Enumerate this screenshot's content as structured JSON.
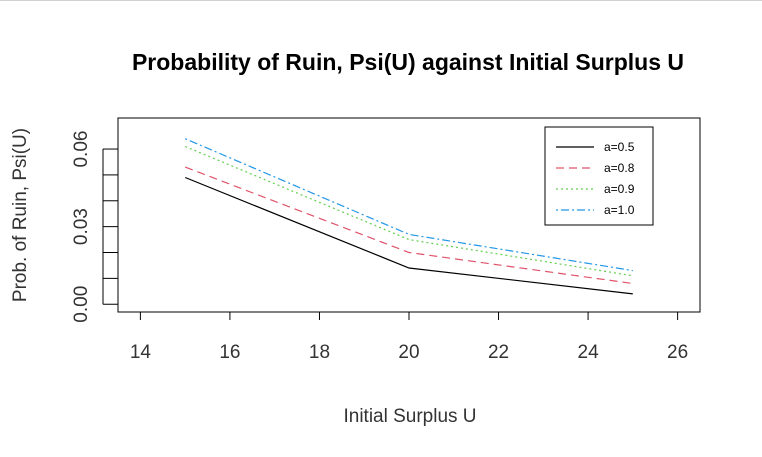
{
  "chart_data": {
    "type": "line",
    "title": "Probability of Ruin, Psi(U) against Initial Surplus U",
    "xlabel": "Initial Surplus U",
    "ylabel": "Prob. of Ruin, Psi(U)",
    "xlim": [
      13.5,
      26.5
    ],
    "ylim": [
      -0.003,
      0.072
    ],
    "xticks": [
      14,
      16,
      18,
      20,
      22,
      24,
      26
    ],
    "xtick_labels": [
      "14",
      "16",
      "18",
      "20",
      "22",
      "24",
      "26"
    ],
    "yticks": [
      0.0,
      0.01,
      0.02,
      0.03,
      0.04,
      0.05,
      0.06
    ],
    "ytick_labels": [
      "0.00",
      "",
      "",
      "0.03",
      "",
      "",
      "0.06"
    ],
    "grid": false,
    "legend_position": "top-right",
    "x": [
      15,
      20,
      25
    ],
    "series": [
      {
        "name": "a=0.5",
        "values": [
          0.049,
          0.014,
          0.004
        ],
        "color": "#000000",
        "dash": "solid"
      },
      {
        "name": "a=0.8",
        "values": [
          0.053,
          0.02,
          0.008
        ],
        "color": "#DF536B",
        "dash": "dashed"
      },
      {
        "name": "a=0.9",
        "values": [
          0.061,
          0.025,
          0.011
        ],
        "color": "#61D04F",
        "dash": "dotted"
      },
      {
        "name": "a=1.0",
        "values": [
          0.064,
          0.027,
          0.013
        ],
        "color": "#2297E6",
        "dash": "dotdash"
      }
    ]
  }
}
